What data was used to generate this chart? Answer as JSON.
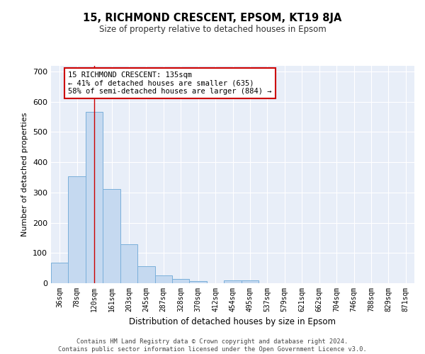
{
  "title1": "15, RICHMOND CRESCENT, EPSOM, KT19 8JA",
  "title2": "Size of property relative to detached houses in Epsom",
  "xlabel": "Distribution of detached houses by size in Epsom",
  "ylabel": "Number of detached properties",
  "bin_labels": [
    "36sqm",
    "78sqm",
    "120sqm",
    "161sqm",
    "203sqm",
    "245sqm",
    "287sqm",
    "328sqm",
    "370sqm",
    "412sqm",
    "454sqm",
    "495sqm",
    "537sqm",
    "579sqm",
    "621sqm",
    "662sqm",
    "704sqm",
    "746sqm",
    "788sqm",
    "829sqm",
    "871sqm"
  ],
  "bar_values": [
    68,
    353,
    567,
    312,
    128,
    57,
    25,
    14,
    7,
    0,
    10,
    10,
    0,
    0,
    0,
    0,
    0,
    0,
    0,
    0,
    0
  ],
  "bar_color": "#c5d9f0",
  "bar_edge_color": "#7aafda",
  "red_line_x": 2.0,
  "annotation_text": "15 RICHMOND CRESCENT: 135sqm\n← 41% of detached houses are smaller (635)\n58% of semi-detached houses are larger (884) →",
  "annotation_box_color": "#ffffff",
  "annotation_box_edge_color": "#cc0000",
  "ylim": [
    0,
    720
  ],
  "yticks": [
    0,
    100,
    200,
    300,
    400,
    500,
    600,
    700
  ],
  "footer": "Contains HM Land Registry data © Crown copyright and database right 2024.\nContains public sector information licensed under the Open Government Licence v3.0.",
  "plot_bg_color": "#e8eef8",
  "grid_color": "#ffffff"
}
